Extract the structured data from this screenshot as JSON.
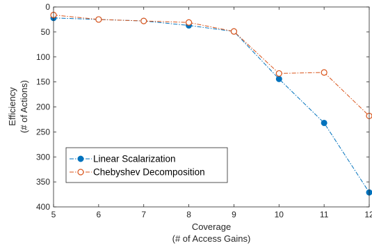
{
  "chart_data": {
    "type": "line",
    "xlabel_line1": "Coverage",
    "xlabel_line2": "(# of Access Gains)",
    "ylabel_line1": "Efficiency",
    "ylabel_line2": "(# of Actions)",
    "x": [
      5,
      6,
      7,
      8,
      9,
      10,
      11,
      12
    ],
    "xlim": [
      5,
      12
    ],
    "ylim": [
      0,
      400
    ],
    "y_reversed": true,
    "xticks": [
      5,
      6,
      7,
      8,
      9,
      10,
      11,
      12
    ],
    "yticks": [
      0,
      50,
      100,
      150,
      200,
      250,
      300,
      350,
      400
    ],
    "grid": false,
    "legend_position": "bottom-left",
    "series": [
      {
        "name": "Linear Scalarization",
        "color": "#0072bd",
        "marker": "filled-circle",
        "line_style": "dash-dot",
        "values": [
          22,
          25,
          28,
          37,
          49,
          144,
          232,
          371
        ]
      },
      {
        "name": "Chebyshev Decomposition",
        "color": "#d95319",
        "marker": "open-circle",
        "line_style": "dash-dot",
        "values": [
          16,
          25,
          28,
          31,
          49,
          133,
          131,
          218
        ]
      }
    ]
  }
}
